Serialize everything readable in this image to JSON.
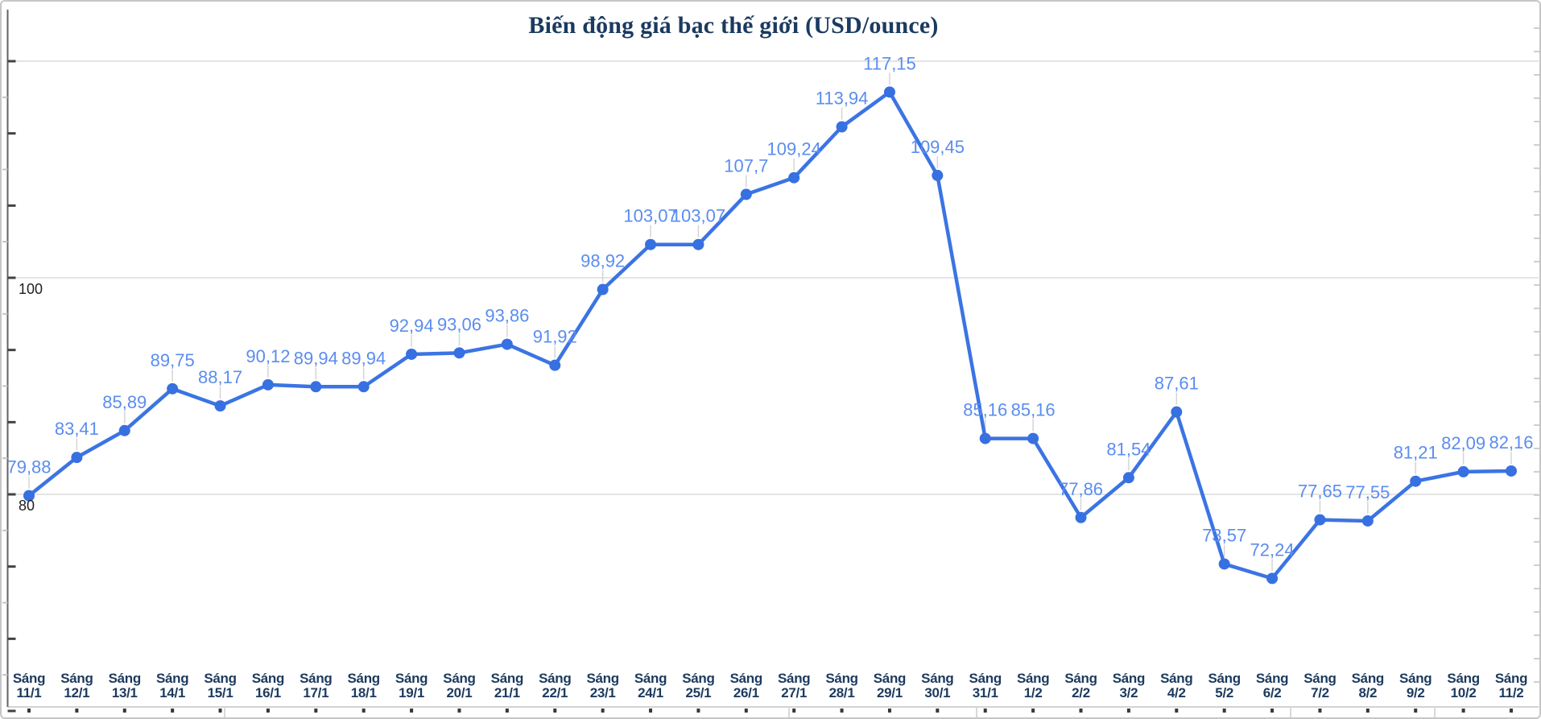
{
  "chart_data": {
    "type": "line",
    "title": "Biến động giá bạc thế giới (USD/ounce)",
    "categories": [
      "Sáng 11/1",
      "Sáng 12/1",
      "Sáng 13/1",
      "Sáng 14/1",
      "Sáng 15/1",
      "Sáng 16/1",
      "Sáng 17/1",
      "Sáng 18/1",
      "Sáng 19/1",
      "Sáng 20/1",
      "Sáng 21/1",
      "Sáng 22/1",
      "Sáng 23/1",
      "Sáng 24/1",
      "Sáng 25/1",
      "Sáng 26/1",
      "Sáng 27/1",
      "Sáng 28/1",
      "Sáng 29/1",
      "Sáng 30/1",
      "Sáng 31/1",
      "Sáng 1/2",
      "Sáng 2/2",
      "Sáng 3/2",
      "Sáng 4/2",
      "Sáng 5/2",
      "Sáng 6/2",
      "Sáng 7/2",
      "Sáng 8/2",
      "Sáng 9/2",
      "Sáng 10/2",
      "Sáng 11/2"
    ],
    "values": [
      79.88,
      83.41,
      85.89,
      89.75,
      88.17,
      90.12,
      89.94,
      89.94,
      92.94,
      93.06,
      93.86,
      91.92,
      98.92,
      103.07,
      103.07,
      107.7,
      109.24,
      113.94,
      117.15,
      109.45,
      85.16,
      85.16,
      77.86,
      81.54,
      87.61,
      73.57,
      72.24,
      77.65,
      77.55,
      81.21,
      82.09,
      82.16
    ],
    "data_labels": [
      "79,88",
      "83,41",
      "85,89",
      "89,75",
      "88,17",
      "90,12",
      "89,94",
      "89,94",
      "92,94",
      "93,06",
      "93,86",
      "91,92",
      "98,92",
      "103,07",
      "103,07",
      "107,7",
      "109,24",
      "113,94",
      "117,15",
      "109,45",
      "85,16",
      "85,16",
      "77,86",
      "81,54",
      "87,61",
      "73,57",
      "72,24",
      "77,65",
      "77,55",
      "81,21",
      "82,09",
      "82,16"
    ],
    "y_axis_ticks": [
      "100",
      "80"
    ],
    "gridline_values": [
      120,
      100,
      80
    ],
    "ylim": [
      60,
      125
    ],
    "xlabel": "",
    "ylabel": "",
    "legend_position": "none",
    "grid": "horizontal",
    "colors": {
      "series_line": "#3b74e3",
      "marker": "#3770e0",
      "data_label": "#5b8def",
      "title": "#1b3a60",
      "x_axis_label": "#1c3a5e",
      "y_axis_label": "#1f1f1f",
      "gridline": "#e4e4e4",
      "axis_line": "#5f6368"
    }
  }
}
